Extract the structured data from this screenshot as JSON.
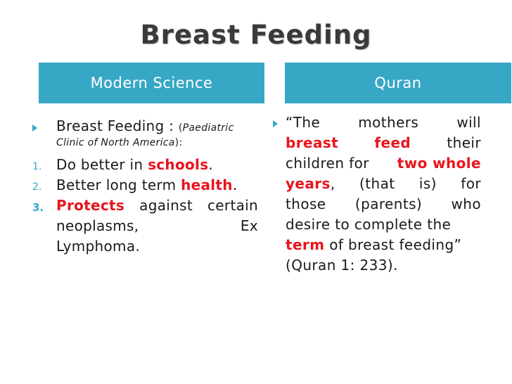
{
  "title": "Breast Feeding",
  "headers": {
    "left": "Modern Science",
    "right": "Quran"
  },
  "left": {
    "item1_head": "Breast Feeding : ",
    "item1_paren_open": "(",
    "item1_source_a": "Paediatric",
    "item1_source_b": "Clinic of North America",
    "item1_paren_close": "):",
    "n1": "1.",
    "item2_pre": "Do better in ",
    "item2_red": "schools",
    "item2_post": ".",
    "n2": "2.",
    "item3_pre": "Better long term ",
    "item3_red": "health",
    "item3_post": ".",
    "n3": "3.",
    "item4_red": "Protects",
    "item4_w1": "against",
    "item4_w2": "certain",
    "item4_l2_a": "neoplasms,",
    "item4_l2_b": "Ex",
    "item4_l3": "Lymphoma."
  },
  "right": {
    "l1_a": "“The",
    "l1_b": "mothers",
    "l1_c": "will",
    "l2_a": "breast",
    "l2_b": "feed",
    "l2_c": "their",
    "l3_a": "children for ",
    "l3_b": "two whole",
    "l4_a": "years",
    "l4_b": ",",
    "l4_c": "(that",
    "l4_d": "is)",
    "l4_e": "for",
    "l5_a": "those",
    "l5_b": "(parents)",
    "l5_c": "who",
    "l6": "desire to complete the",
    "l7_a": "term",
    "l7_b": " of breast feeding”",
    "l8": "(Quran 1: 233)."
  },
  "colors": {
    "accent": "#37a7c6",
    "highlight": "#e8141c",
    "text": "#1a1a1a"
  }
}
